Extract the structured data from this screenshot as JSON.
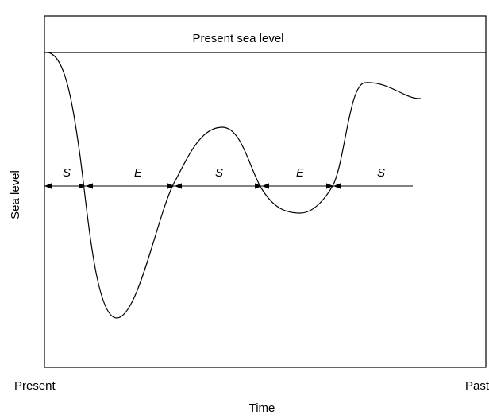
{
  "diagram": {
    "reference_label": "Present sea level",
    "segments": [
      "S",
      "E",
      "S",
      "E",
      "S"
    ],
    "y_axis_label": "Sea level",
    "x_axis_label": "Time",
    "x_start_label": "Present",
    "x_end_label": "Past"
  }
}
